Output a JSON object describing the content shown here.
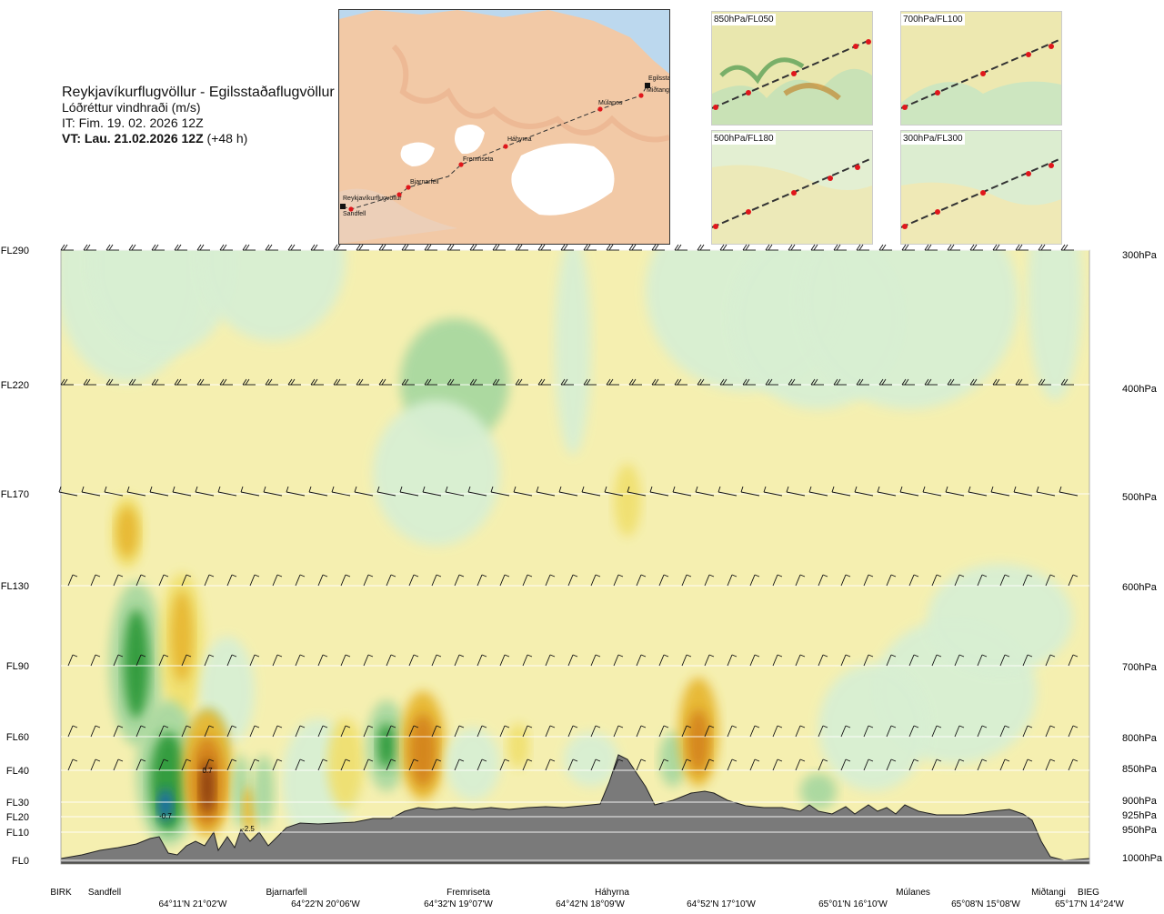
{
  "header": {
    "route": "Reykjavíkurflugvöllur - Egilsstaðaflugvöllur",
    "variable": "Lóðréttur vindhraði (m/s)",
    "issue_time": "IT: Fim. 19. 02. 2026 12Z",
    "valid_prefix": "VT: Lau. 21.02.2026 12Z",
    "valid_suffix": "(+48 h)"
  },
  "route_map": {
    "waypoints": [
      "Reykjavíkurflugvöllur",
      "Sandfell",
      "Bjarnarfell",
      "Fremriseta",
      "Háhyrna",
      "Múlanes",
      "Egilsstaðir",
      "Miðtangi"
    ]
  },
  "panels": [
    {
      "label": "850hPa/FL050"
    },
    {
      "label": "700hPa/FL100"
    },
    {
      "label": "500hPa/FL180"
    },
    {
      "label": "300hPa/FL300"
    }
  ],
  "colors": {
    "background_fill": "#f5efb0",
    "terrain": "#7a7a7a",
    "updraft_light": "#d8efd3",
    "updraft_mid": "#a9d8a0",
    "updraft_strong": "#2f9a3a",
    "updraft_max": "#1e6ab0",
    "downdraft_light": "#f0e070",
    "downdraft_mid": "#e7b732",
    "downdraft_strong": "#d4841c",
    "downdraft_max": "#8a3b10"
  },
  "chart_data": {
    "type": "heatmap",
    "title": "",
    "xlabel": "",
    "ylabel": "",
    "y_left_ticks": [
      "FL290",
      "FL220",
      "FL170",
      "FL130",
      "FL90",
      "FL60",
      "FL40",
      "FL30",
      "FL20",
      "FL10",
      "FL0"
    ],
    "y_right_ticks": [
      "300hPa",
      "400hPa",
      "500hPa",
      "600hPa",
      "700hPa",
      "800hPa",
      "850hPa",
      "900hPa",
      "925hPa",
      "950hPa",
      "1000hPa"
    ],
    "x_waypoints": [
      "BIRK",
      "Sandfell",
      "Bjarnarfell",
      "Fremriseta",
      "Háhyrna",
      "Múlanes",
      "Miðtangi",
      "BIEG"
    ],
    "x_coords": [
      "64°11'N 21°02'W",
      "64°22'N 20°06'W",
      "64°32'N 19°07'W",
      "64°42'N 18°09'W",
      "64°52'N 17°10'W",
      "65°01'N 16°10'W",
      "65°08'N 15°08'W",
      "65°17'N 14°24'W"
    ],
    "annotations": [
      "-0.7",
      "0.7",
      "-2.5"
    ],
    "grid": true,
    "legend": "none"
  }
}
